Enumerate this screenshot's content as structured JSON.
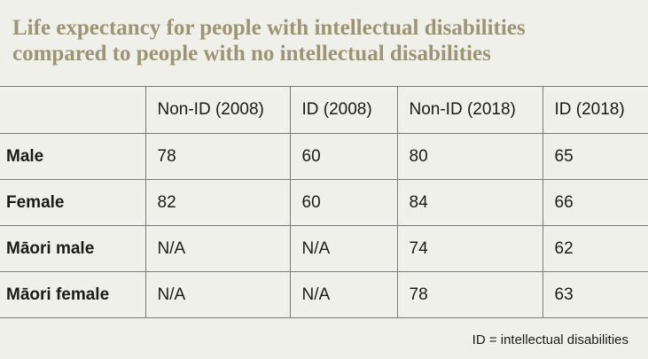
{
  "title": {
    "line1": "Life expectancy for people with intellectual disabilities",
    "line2": "compared to people with no intellectual disabilities"
  },
  "table": {
    "columns": [
      "",
      "Non-ID (2008)",
      "ID (2008)",
      "Non-ID (2018)",
      "ID (2018)"
    ],
    "rows": [
      {
        "label": "Male",
        "values": [
          "78",
          "60",
          "80",
          "65"
        ]
      },
      {
        "label": "Female",
        "values": [
          "82",
          "60",
          "84",
          "66"
        ]
      },
      {
        "label": "Māori male",
        "values": [
          "N/A",
          "N/A",
          "74",
          "62"
        ]
      },
      {
        "label": "Māori female",
        "values": [
          "N/A",
          "N/A",
          "78",
          "63"
        ]
      }
    ]
  },
  "footnote": "ID = intellectual disabilities"
}
